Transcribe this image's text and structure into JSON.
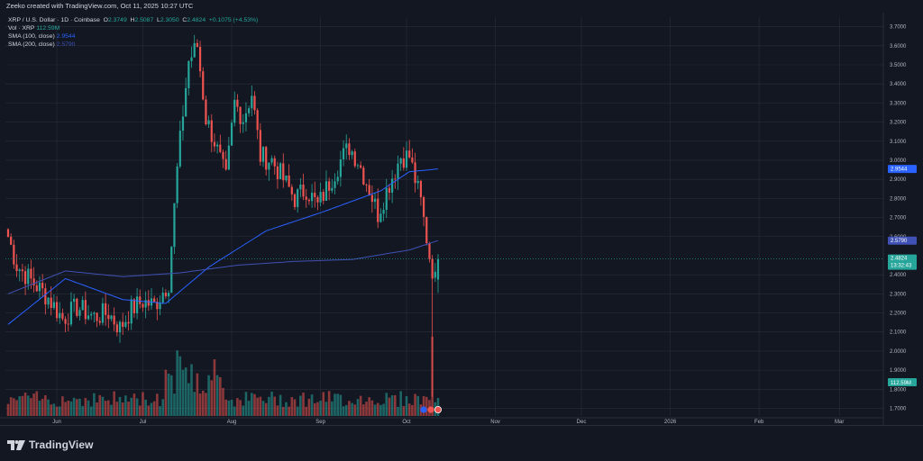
{
  "header": {
    "text": "Zeeko created with TradingView.com, Oct 11, 2025 10:27 UTC"
  },
  "legend": {
    "symbol": "XRP / U.S. Dollar · 1D · Coinbase",
    "o_label": "O",
    "o_value": "2.3749",
    "h_label": "H",
    "h_value": "2.5087",
    "l_label": "L",
    "l_value": "2.3050",
    "c_label": "C",
    "c_value": "2.4824",
    "change": "+0.1075 (+4.53%)",
    "vol_label": "Vol · XRP",
    "vol_value": "112.59M",
    "sma100_label": "SMA (100, close)",
    "sma100_value": "2.9544",
    "sma200_label": "SMA (200, close)",
    "sma200_value": "2.5790"
  },
  "tags": {
    "sma100": "2.9544",
    "sma200": "2.5790",
    "price": "2.4824",
    "countdown": "13:32:43",
    "volume": "112.59M"
  },
  "footer": {
    "brand": "TradingView"
  },
  "colors": {
    "background": "#131722",
    "up": "#26a69a",
    "down": "#ef5350",
    "sma100": "#2962ff",
    "sma200": "#3f51b5",
    "grid": "#2a2e39",
    "text": "#b2b5be"
  },
  "chart_data": {
    "type": "candlestick",
    "title": "XRP / U.S. Dollar · 1D · Coinbase",
    "y_axis_ticks": [
      "3.7000",
      "3.6000",
      "3.5000",
      "3.4000",
      "3.3000",
      "3.2000",
      "3.1000",
      "3.0000",
      "2.9000",
      "2.8000",
      "2.7000",
      "2.6000",
      "2.4000",
      "2.3000",
      "2.2000",
      "2.1000",
      "2.0000",
      "1.9000",
      "1.8000",
      "1.7000"
    ],
    "y_tick_values": [
      3.7,
      3.6,
      3.5,
      3.4,
      3.3,
      3.2,
      3.1,
      3.0,
      2.9,
      2.8,
      2.7,
      2.6,
      2.4,
      2.3,
      2.2,
      2.1,
      2.0,
      1.9,
      1.8,
      1.7
    ],
    "x_axis_ticks": [
      "Jun",
      "Jul",
      "Aug",
      "Sep",
      "Oct",
      "Nov",
      "Dec",
      "2026",
      "Feb",
      "Mar"
    ],
    "x_tick_days": [
      17,
      47,
      78,
      109,
      139,
      170,
      200,
      231,
      262,
      290
    ],
    "ylim": [
      1.66,
      3.75
    ],
    "start_date": "2025-05-15",
    "key_points": [
      [
        0,
        2.6
      ],
      [
        3,
        2.45
      ],
      [
        8,
        2.37
      ],
      [
        14,
        2.28
      ],
      [
        19,
        2.17
      ],
      [
        24,
        2.23
      ],
      [
        30,
        2.18
      ],
      [
        35,
        2.2
      ],
      [
        39,
        2.12
      ],
      [
        43,
        2.22
      ],
      [
        47,
        2.26
      ],
      [
        51,
        2.24
      ],
      [
        56,
        2.36
      ],
      [
        59,
        2.95
      ],
      [
        61,
        3.25
      ],
      [
        63,
        3.52
      ],
      [
        66,
        3.6
      ],
      [
        69,
        3.22
      ],
      [
        72,
        3.1
      ],
      [
        76,
        2.9
      ],
      [
        79,
        3.3
      ],
      [
        82,
        3.22
      ],
      [
        85,
        3.35
      ],
      [
        88,
        3.02
      ],
      [
        92,
        3.0
      ],
      [
        96,
        2.9
      ],
      [
        100,
        2.8
      ],
      [
        104,
        2.85
      ],
      [
        108,
        2.76
      ],
      [
        112,
        2.88
      ],
      [
        116,
        3.0
      ],
      [
        119,
        3.07
      ],
      [
        122,
        3.0
      ],
      [
        126,
        2.85
      ],
      [
        129,
        2.72
      ],
      [
        133,
        2.88
      ],
      [
        137,
        3.02
      ],
      [
        140,
        3.02
      ],
      [
        144,
        2.78
      ],
      [
        147,
        2.5
      ],
      [
        149,
        2.37
      ],
      [
        150,
        2.4824
      ]
    ],
    "sma100_key_points": [
      [
        0,
        2.14
      ],
      [
        20,
        2.38
      ],
      [
        40,
        2.27
      ],
      [
        55,
        2.25
      ],
      [
        70,
        2.44
      ],
      [
        90,
        2.63
      ],
      [
        110,
        2.73
      ],
      [
        130,
        2.84
      ],
      [
        140,
        2.94
      ],
      [
        150,
        2.9544
      ]
    ],
    "sma200_key_points": [
      [
        0,
        2.3
      ],
      [
        20,
        2.42
      ],
      [
        40,
        2.39
      ],
      [
        60,
        2.41
      ],
      [
        80,
        2.45
      ],
      [
        100,
        2.47
      ],
      [
        120,
        2.48
      ],
      [
        140,
        2.53
      ],
      [
        150,
        2.579
      ]
    ],
    "last": {
      "open": 2.3749,
      "high": 2.5087,
      "low": 2.305,
      "close": 2.4824,
      "change": 0.1075,
      "change_pct": 4.53,
      "volume": "112.59M"
    }
  }
}
